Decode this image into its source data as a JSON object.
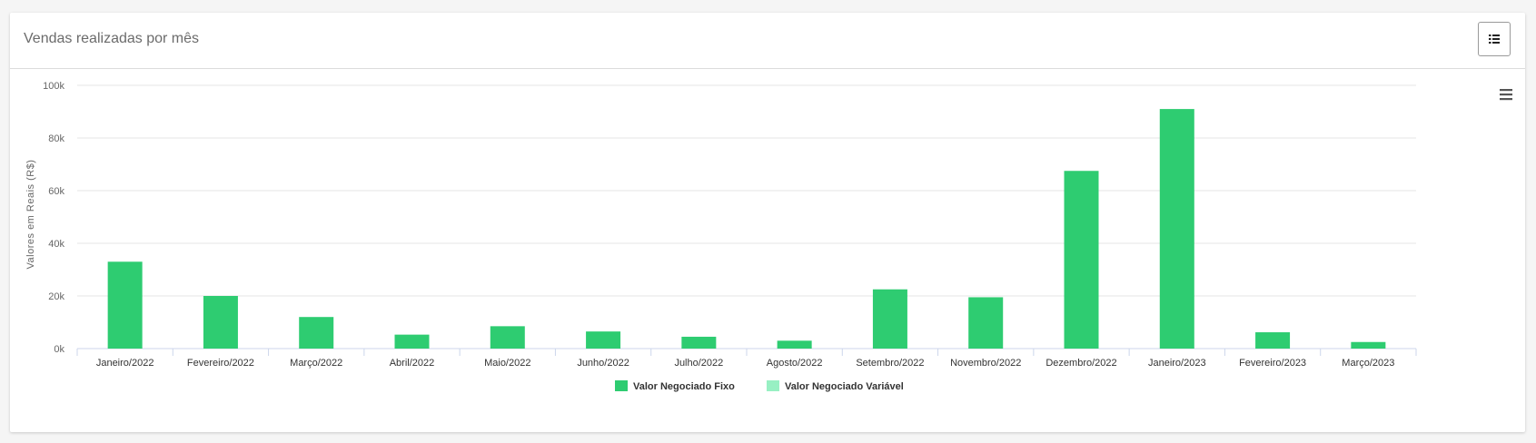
{
  "card": {
    "title": "Vendas realizadas por mês",
    "list_button_icon": "list-icon",
    "menu_icon": "hamburger-menu-icon"
  },
  "chart_data": {
    "type": "bar",
    "title": "Vendas realizadas por mês",
    "xlabel": "",
    "ylabel": "Valores em Reais (R$)",
    "ylim": [
      0,
      100000
    ],
    "yticks": [
      "0k",
      "20k",
      "40k",
      "60k",
      "80k",
      "100k"
    ],
    "grid": true,
    "legend_position": "bottom-center",
    "categories": [
      "Janeiro/2022",
      "Fevereiro/2022",
      "Março/2022",
      "Abril/2022",
      "Maio/2022",
      "Junho/2022",
      "Julho/2022",
      "Agosto/2022",
      "Setembro/2022",
      "Novembro/2022",
      "Dezembro/2022",
      "Janeiro/2023",
      "Fevereiro/2023",
      "Março/2023"
    ],
    "series": [
      {
        "name": "Valor Negociado Fixo",
        "color": "#2ecc71",
        "values": [
          33000,
          20000,
          12000,
          5300,
          8500,
          6500,
          4500,
          3000,
          22500,
          19500,
          67500,
          91000,
          6200,
          2500
        ]
      },
      {
        "name": "Valor Negociado Variável",
        "color": "#98f0c3",
        "values": [
          0,
          0,
          0,
          0,
          0,
          0,
          0,
          0,
          0,
          0,
          0,
          0,
          0,
          0
        ]
      }
    ]
  }
}
